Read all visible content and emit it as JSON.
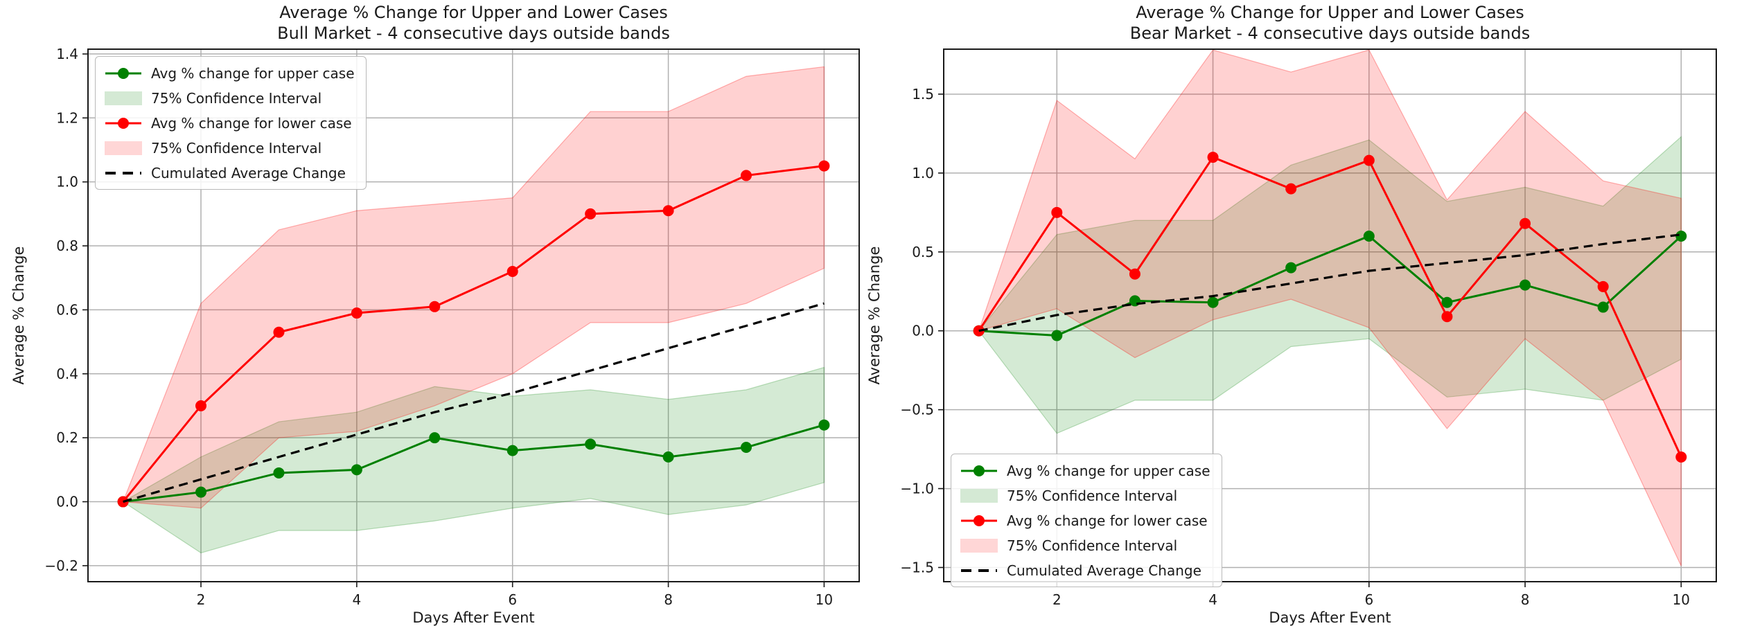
{
  "figure": {
    "background": "#ffffff",
    "x_axis_label": "Days After Event",
    "y_axis_label": "Average % Change"
  },
  "legend_labels": [
    "Avg % change for upper case",
    "75% Confidence Interval",
    "Avg % change for lower case",
    "75% Confidence Interval",
    "Cumulated Average Change"
  ],
  "colors": {
    "upper_line": "#008000",
    "lower_line": "#ff0000",
    "cumulated_line": "#000000",
    "upper_band_fill": "rgba(0,128,0,0.17)",
    "lower_band_fill": "rgba(255,0,0,0.18)",
    "upper_band_legend": "#d4e9d4",
    "lower_band_legend": "#ffd6d6",
    "grid": "#b0b0b0",
    "spine": "#1a1a1a",
    "text": "#1a1a1a"
  },
  "chart_data": [
    {
      "type": "line",
      "title": "Average % Change for Upper and Lower Cases",
      "subtitle": "Bull Market - 4 consecutive days outside bands",
      "xlabel": "Days After Event",
      "ylabel": "Average % Change",
      "x": [
        1,
        2,
        3,
        4,
        5,
        6,
        7,
        8,
        9,
        10
      ],
      "xticks": [
        2,
        4,
        6,
        8,
        10
      ],
      "yticks": [
        -0.2,
        0.0,
        0.2,
        0.4,
        0.6,
        0.8,
        1.0,
        1.2,
        1.4
      ],
      "xlim": [
        0.55,
        10.45
      ],
      "ylim": [
        -0.25,
        1.415
      ],
      "grid": true,
      "legend_position": "upper left",
      "series": [
        {
          "name": "Avg % change for upper case",
          "kind": "line-marker",
          "color": "green",
          "values": [
            0.0,
            0.03,
            0.09,
            0.1,
            0.2,
            0.16,
            0.18,
            0.14,
            0.17,
            0.24
          ]
        },
        {
          "name": "75% Confidence Interval",
          "kind": "band",
          "color": "green",
          "upper": [
            0.0,
            0.14,
            0.25,
            0.28,
            0.36,
            0.33,
            0.35,
            0.32,
            0.35,
            0.42
          ],
          "lower": [
            0.0,
            -0.16,
            -0.09,
            -0.09,
            -0.06,
            -0.02,
            0.01,
            -0.04,
            -0.01,
            0.06
          ]
        },
        {
          "name": "Avg % change for lower case",
          "kind": "line-marker",
          "color": "red",
          "values": [
            0.0,
            0.3,
            0.53,
            0.59,
            0.61,
            0.72,
            0.9,
            0.91,
            1.02,
            1.05
          ]
        },
        {
          "name": "75% Confidence Interval",
          "kind": "band",
          "color": "red",
          "upper": [
            0.0,
            0.62,
            0.85,
            0.91,
            0.93,
            0.95,
            1.22,
            1.22,
            1.33,
            1.36
          ],
          "lower": [
            0.0,
            -0.02,
            0.2,
            0.22,
            0.3,
            0.4,
            0.56,
            0.56,
            0.62,
            0.73
          ]
        },
        {
          "name": "Cumulated Average Change",
          "kind": "dashed",
          "color": "black",
          "values": [
            0.0,
            0.07,
            0.14,
            0.21,
            0.28,
            0.34,
            0.41,
            0.48,
            0.55,
            0.62
          ]
        }
      ]
    },
    {
      "type": "line",
      "title": "Average % Change for Upper and Lower Cases",
      "subtitle": "Bear Market - 4 consecutive days outside bands",
      "xlabel": "Days After Event",
      "ylabel": "Average % Change",
      "x": [
        1,
        2,
        3,
        4,
        5,
        6,
        7,
        8,
        9,
        10
      ],
      "xticks": [
        2,
        4,
        6,
        8,
        10
      ],
      "yticks": [
        -1.5,
        -1.0,
        -0.5,
        0.0,
        0.5,
        1.0,
        1.5
      ],
      "xlim": [
        0.55,
        10.45
      ],
      "ylim": [
        -1.59,
        1.785
      ],
      "grid": true,
      "legend_position": "lower left",
      "series": [
        {
          "name": "Avg % change for upper case",
          "kind": "line-marker",
          "color": "green",
          "values": [
            0.0,
            -0.03,
            0.19,
            0.18,
            0.4,
            0.6,
            0.18,
            0.29,
            0.15,
            0.6
          ]
        },
        {
          "name": "75% Confidence Interval",
          "kind": "band",
          "color": "green",
          "upper": [
            0.0,
            0.61,
            0.7,
            0.7,
            1.05,
            1.21,
            0.82,
            0.91,
            0.79,
            1.23
          ],
          "lower": [
            0.0,
            -0.65,
            -0.44,
            -0.44,
            -0.1,
            -0.05,
            -0.42,
            -0.37,
            -0.44,
            -0.18
          ]
        },
        {
          "name": "Avg % change for lower case",
          "kind": "line-marker",
          "color": "red",
          "values": [
            0.0,
            0.75,
            0.36,
            1.1,
            0.9,
            1.08,
            0.09,
            0.68,
            0.28,
            -0.8
          ]
        },
        {
          "name": "75% Confidence Interval",
          "kind": "band",
          "color": "red",
          "upper": [
            0.0,
            1.46,
            1.09,
            1.78,
            1.64,
            1.78,
            0.83,
            1.39,
            0.95,
            0.84
          ],
          "lower": [
            0.0,
            0.14,
            -0.17,
            0.07,
            0.2,
            0.02,
            -0.62,
            -0.05,
            -0.44,
            -1.49
          ]
        },
        {
          "name": "Cumulated Average Change",
          "kind": "dashed",
          "color": "black",
          "values": [
            0.0,
            0.1,
            0.17,
            0.22,
            0.3,
            0.38,
            0.43,
            0.48,
            0.55,
            0.61
          ]
        }
      ]
    }
  ]
}
